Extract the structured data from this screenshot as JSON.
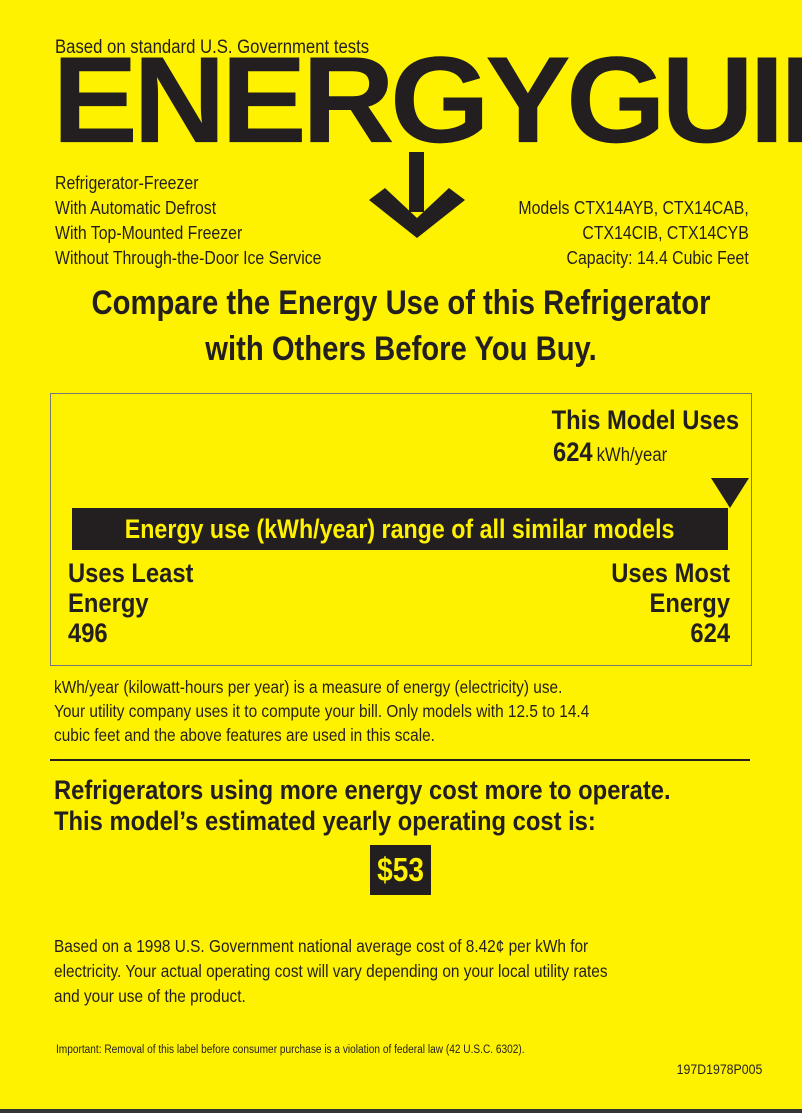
{
  "header": {
    "tests_note": "Based on standard U.S. Government tests",
    "logo": "ENERGYGUIDE"
  },
  "product": {
    "features": [
      "Refrigerator-Freezer",
      "With Automatic Defrost",
      "With Top-Mounted Freezer",
      "Without Through-the-Door Ice Service"
    ],
    "models": [
      "Models CTX14AYB, CTX14CAB,",
      "CTX14CIB, CTX14CYB"
    ],
    "capacity": "Capacity: 14.4 Cubic Feet"
  },
  "headline": [
    "Compare the Energy Use of this Refrigerator",
    "with Others Before You Buy."
  ],
  "scale": {
    "this_model_label": "This Model Uses",
    "this_model_value": "624",
    "unit": "kWh/year",
    "range_title": "Energy use (kWh/year) range of all similar models",
    "least_label": [
      "Uses Least",
      "Energy"
    ],
    "least_value": "496",
    "most_label": [
      "Uses Most",
      "Energy"
    ],
    "most_value": "624",
    "marker_fraction": 1.0
  },
  "explanation": [
    "kWh/year (kilowatt-hours per year) is a measure of energy (electricity) use.",
    "Your utility company uses it to compute your bill. Only models with 12.5 to 14.4",
    "cubic feet and the above features are used in this scale."
  ],
  "cost": {
    "heading": [
      "Refrigerators using more energy cost more to operate.",
      "This model’s estimated yearly operating cost is:"
    ],
    "value": "$53",
    "note": [
      "Based on a 1998 U.S. Government national average cost of 8.42¢ per kWh for",
      "electricity. Your actual operating cost will vary depending on your local utility rates",
      "and your use of the product."
    ]
  },
  "footer": {
    "legal": "Important: Removal of this label before consumer purchase is a violation of federal law (42 U.S.C. 6302).",
    "code": "197D1978P005"
  },
  "colors": {
    "background": "#fff200",
    "ink": "#231f20"
  }
}
